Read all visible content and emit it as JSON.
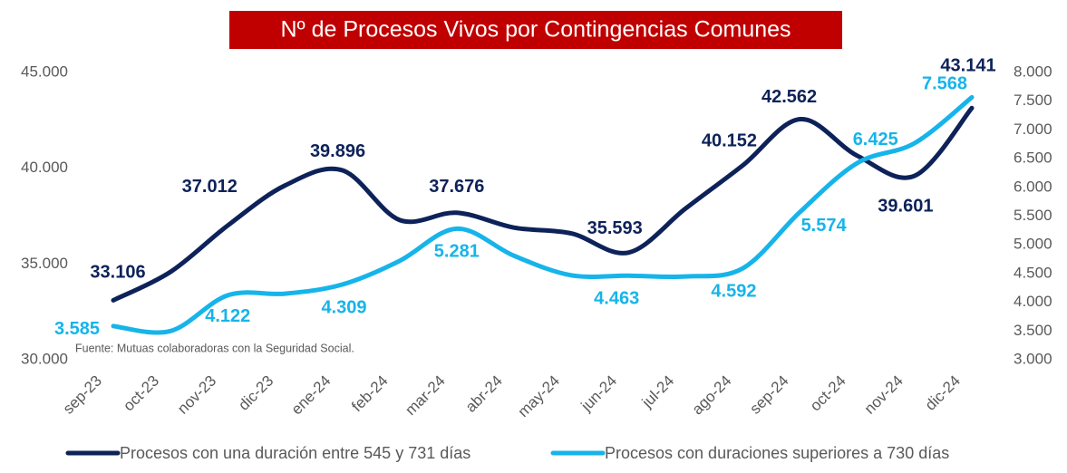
{
  "chart_data": {
    "type": "line",
    "title": "Nº de Procesos Vivos por Contingencias Comunes",
    "note": "Fuente: Mutuas colaboradoras con la Seguridad Social.",
    "categories": [
      "sep-23",
      "oct-23",
      "nov-23",
      "dic-23",
      "ene-24",
      "feb-24",
      "mar-24",
      "abr-24",
      "may-24",
      "jun-24",
      "jul-24",
      "ago-24",
      "sep-24",
      "oct-24",
      "nov-24",
      "dic-24"
    ],
    "series": [
      {
        "name": "Procesos con una duración entre 545 y 731 días",
        "color": "#0d2259",
        "values": [
          33106,
          34590,
          37012,
          39100,
          39896,
          37300,
          37676,
          36900,
          36600,
          35593,
          37900,
          40152,
          42562,
          40650,
          39601,
          43141
        ],
        "value_labels": [
          "33.106",
          null,
          "37.012",
          null,
          "39.896",
          null,
          "37.676",
          null,
          null,
          "35.593",
          null,
          "40.152",
          "42.562",
          null,
          "39.601",
          "43.141"
        ]
      },
      {
        "name": "Procesos con duraciones superiores a 730 días",
        "color": "#16b4ea",
        "axis": "y2",
        "values": [
          3585,
          3500,
          4122,
          4150,
          4309,
          4720,
          5281,
          4810,
          4470,
          4463,
          4450,
          4592,
          5574,
          6425,
          6770,
          7568
        ],
        "value_labels": [
          "3.585",
          null,
          "4.122",
          null,
          "4.309",
          null,
          "5.281",
          null,
          null,
          "4.463",
          null,
          "4.592",
          "5.574",
          "6.425",
          null,
          "7.568"
        ]
      }
    ],
    "ylim": [
      30000,
      45000
    ],
    "yticks": [
      {
        "value": 30000,
        "label": "30.000"
      },
      {
        "value": 35000,
        "label": "35.000"
      },
      {
        "value": 40000,
        "label": "40.000"
      },
      {
        "value": 45000,
        "label": "45.000"
      }
    ],
    "y2lim": [
      3000,
      8000
    ],
    "y2ticks": [
      {
        "value": 3000,
        "label": "3.000"
      },
      {
        "value": 3500,
        "label": "3.500"
      },
      {
        "value": 4000,
        "label": "4.000"
      },
      {
        "value": 4500,
        "label": "4.500"
      },
      {
        "value": 5000,
        "label": "5.000"
      },
      {
        "value": 5500,
        "label": "5.500"
      },
      {
        "value": 6000,
        "label": "6.000"
      },
      {
        "value": 6500,
        "label": "6.500"
      },
      {
        "value": 7000,
        "label": "7.000"
      },
      {
        "value": 7500,
        "label": "7.500"
      },
      {
        "value": 8000,
        "label": "8.000"
      }
    ],
    "legend": "bottom"
  }
}
